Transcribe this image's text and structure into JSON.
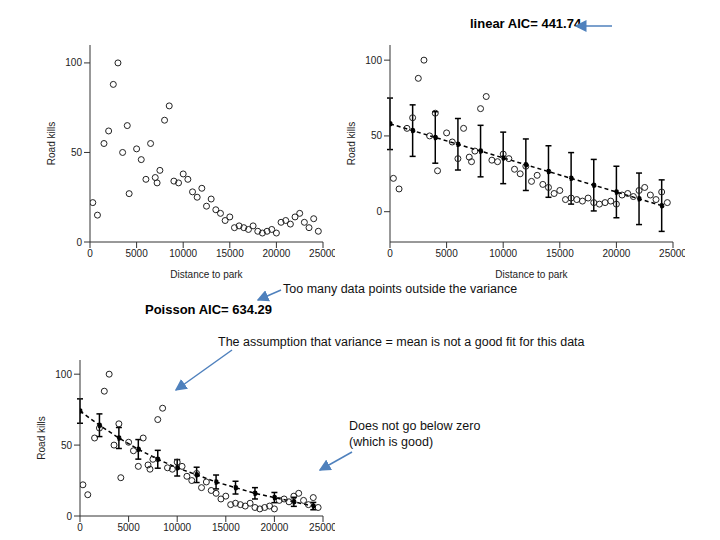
{
  "chart_data": [
    {
      "type": "scatter",
      "x_label": "Distance to park",
      "y_label": "Road kills",
      "xlim": [
        0,
        25000
      ],
      "ylim": [
        0,
        110
      ],
      "xticks": [
        0,
        5000,
        10000,
        15000,
        20000,
        25000
      ],
      "yticks": [
        0,
        50,
        100
      ],
      "series": [
        {
          "type": "scatter",
          "marker": "circle",
          "color": "#222222",
          "x": [
            300,
            800,
            1500,
            2000,
            2500,
            3000,
            3500,
            4000,
            4200,
            5000,
            5500,
            6000,
            6500,
            7000,
            7200,
            7500,
            8000,
            8500,
            9000,
            9500,
            10000,
            10500,
            11000,
            11500,
            12000,
            12500,
            13000,
            13500,
            14000,
            14500,
            15000,
            15500,
            16000,
            16500,
            17000,
            17500,
            18000,
            18500,
            19000,
            19500,
            20000,
            20500,
            21000,
            21500,
            22000,
            22500,
            23000,
            23500,
            24000,
            24500
          ],
          "values": [
            22,
            15,
            55,
            62,
            88,
            100,
            50,
            65,
            27,
            52,
            46,
            35,
            55,
            36,
            33,
            40,
            68,
            76,
            34,
            33,
            38,
            35,
            28,
            25,
            30,
            20,
            24,
            18,
            16,
            12,
            14,
            8,
            9,
            8,
            7,
            9,
            6,
            5,
            6,
            7,
            5,
            11,
            12,
            10,
            14,
            16,
            11,
            8,
            13,
            6
          ]
        }
      ]
    },
    {
      "type": "line",
      "title": "linear AIC= 441.74",
      "x_label": "Distance to park",
      "y_label": "Road kills",
      "xlim": [
        0,
        25000
      ],
      "ylim": [
        -20,
        110
      ],
      "xticks": [
        0,
        5000,
        10000,
        15000,
        20000,
        25000
      ],
      "yticks": [
        0,
        50,
        100
      ],
      "series": [
        {
          "type": "scatter",
          "marker": "circle",
          "color": "#222222",
          "x": [
            300,
            800,
            1500,
            2000,
            2500,
            3000,
            3500,
            4000,
            4200,
            5000,
            5500,
            6000,
            6500,
            7000,
            7200,
            7500,
            8000,
            8500,
            9000,
            9500,
            10000,
            10500,
            11000,
            11500,
            12000,
            12500,
            13000,
            13500,
            14000,
            14500,
            15000,
            15500,
            16000,
            16500,
            17000,
            17500,
            18000,
            18500,
            19000,
            19500,
            20000,
            20500,
            21000,
            21500,
            22000,
            22500,
            23000,
            23500,
            24000,
            24500
          ],
          "values": [
            22,
            15,
            55,
            62,
            88,
            100,
            50,
            65,
            27,
            52,
            46,
            35,
            55,
            36,
            33,
            40,
            68,
            76,
            34,
            33,
            38,
            35,
            28,
            25,
            30,
            20,
            24,
            18,
            16,
            12,
            14,
            8,
            9,
            8,
            7,
            9,
            6,
            5,
            6,
            7,
            5,
            11,
            12,
            10,
            14,
            16,
            11,
            8,
            13,
            6
          ]
        },
        {
          "type": "line",
          "line_style": "dashed",
          "marker": "dot",
          "color": "#000000",
          "x": [
            0,
            2000,
            4000,
            6000,
            8000,
            10000,
            12000,
            14000,
            16000,
            18000,
            20000,
            22000,
            24000
          ],
          "values": [
            58,
            53.5,
            49,
            44.5,
            40,
            35.5,
            31,
            26.5,
            22,
            17.5,
            13,
            8.5,
            4
          ],
          "errors": [
            17,
            17,
            17,
            17,
            17,
            17,
            17,
            17,
            17,
            17,
            17,
            17,
            17
          ]
        }
      ]
    },
    {
      "type": "line",
      "title": "Poisson AIC= 634.29",
      "x_label": "",
      "y_label": "Road kills",
      "xlim": [
        0,
        25000
      ],
      "ylim": [
        0,
        110
      ],
      "xticks": [
        0,
        5000,
        10000,
        15000,
        20000,
        25000
      ],
      "yticks": [
        0,
        50,
        100
      ],
      "annotations": [
        "Too many data points outside the variance",
        "The assumption that variance = mean is not a good fit for this data",
        "Does not go below zero\n(which is good)"
      ],
      "series": [
        {
          "type": "scatter",
          "marker": "circle",
          "color": "#222222",
          "x": [
            300,
            800,
            1500,
            2000,
            2500,
            3000,
            3500,
            4000,
            4200,
            5000,
            5500,
            6000,
            6500,
            7000,
            7200,
            7500,
            8000,
            8500,
            9000,
            9500,
            10000,
            10500,
            11000,
            11500,
            12000,
            12500,
            13000,
            13500,
            14000,
            14500,
            15000,
            15500,
            16000,
            16500,
            17000,
            17500,
            18000,
            18500,
            19000,
            19500,
            20000,
            20500,
            21000,
            21500,
            22000,
            22500,
            23000,
            23500,
            24000,
            24500
          ],
          "values": [
            22,
            15,
            55,
            62,
            88,
            100,
            50,
            65,
            27,
            52,
            46,
            35,
            55,
            36,
            33,
            40,
            68,
            76,
            34,
            33,
            38,
            35,
            28,
            25,
            30,
            20,
            24,
            18,
            16,
            12,
            14,
            8,
            9,
            8,
            7,
            9,
            6,
            5,
            6,
            7,
            5,
            11,
            12,
            10,
            14,
            16,
            11,
            8,
            13,
            6
          ]
        },
        {
          "type": "line",
          "line_style": "dashed",
          "marker": "dot",
          "color": "#000000",
          "x": [
            0,
            2000,
            4000,
            6000,
            8000,
            10000,
            12000,
            14000,
            16000,
            18000,
            20000,
            22000,
            24000
          ],
          "values": [
            74,
            64,
            55,
            47,
            40,
            34,
            29,
            24,
            20,
            16,
            13,
            10,
            7
          ],
          "errors": [
            8.6,
            8,
            7.4,
            6.9,
            6.3,
            5.8,
            5.4,
            4.9,
            4.5,
            4,
            3.6,
            3.2,
            2.6
          ]
        }
      ]
    }
  ]
}
